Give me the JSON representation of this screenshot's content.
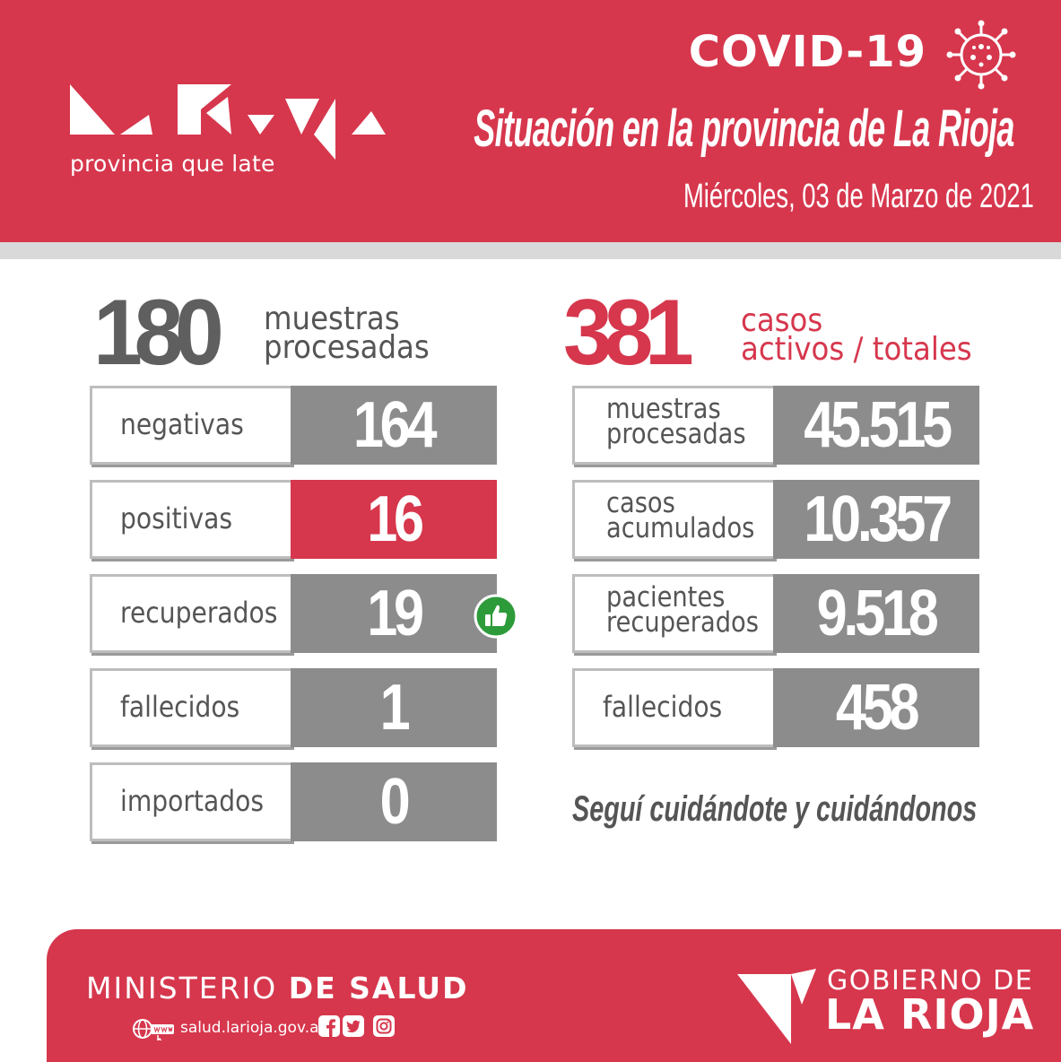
{
  "header": {
    "logo_tagline": "provincia que late",
    "covid_title": "COVID-19",
    "situation_title": "Situación en la provincia de La Rioja",
    "date": "Miércoles, 03 de Marzo de 2021",
    "virus_icon": "virus-icon"
  },
  "left": {
    "big_number": "180",
    "big_label_line1": "muestras",
    "big_label_line2": "procesadas",
    "rows": [
      {
        "label": "negativas",
        "value": "164"
      },
      {
        "label": "positivas",
        "value": "16",
        "highlight": "#d6374d"
      },
      {
        "label": "recuperados",
        "value": "19",
        "icon": "thumbs-up-icon"
      },
      {
        "label": "fallecidos",
        "value": "1"
      },
      {
        "label": "importados",
        "value": "0"
      }
    ]
  },
  "right": {
    "big_number": "381",
    "big_label_line1": "casos",
    "big_label_line2": "activos / totales",
    "rows": [
      {
        "label_line1": "muestras",
        "label_line2": "procesadas",
        "value": "45.515"
      },
      {
        "label_line1": "casos",
        "label_line2": "acumulados",
        "value": "10.357"
      },
      {
        "label_line1": "pacientes",
        "label_line2": "recuperados",
        "value": "9.518"
      },
      {
        "label_line1": "fallecidos",
        "label_line2": "",
        "value": "458"
      }
    ]
  },
  "slogan": "Seguí cuidándote y cuidándonos",
  "footer": {
    "ministry_light": "MINISTERIO",
    "ministry_bold": "DE SALUD",
    "website": "salud.larioja.gov.ar",
    "social_icons": [
      "facebook-icon",
      "twitter-icon",
      "instagram-icon"
    ],
    "gob_line1": "GOBIERNO DE",
    "gob_line2": "LA RIOJA"
  },
  "colors": {
    "brand_red": "#d6374d",
    "value_gray": "#8c8c8c",
    "text_gray": "#555555",
    "thumb_green": "#2e9b3a"
  }
}
